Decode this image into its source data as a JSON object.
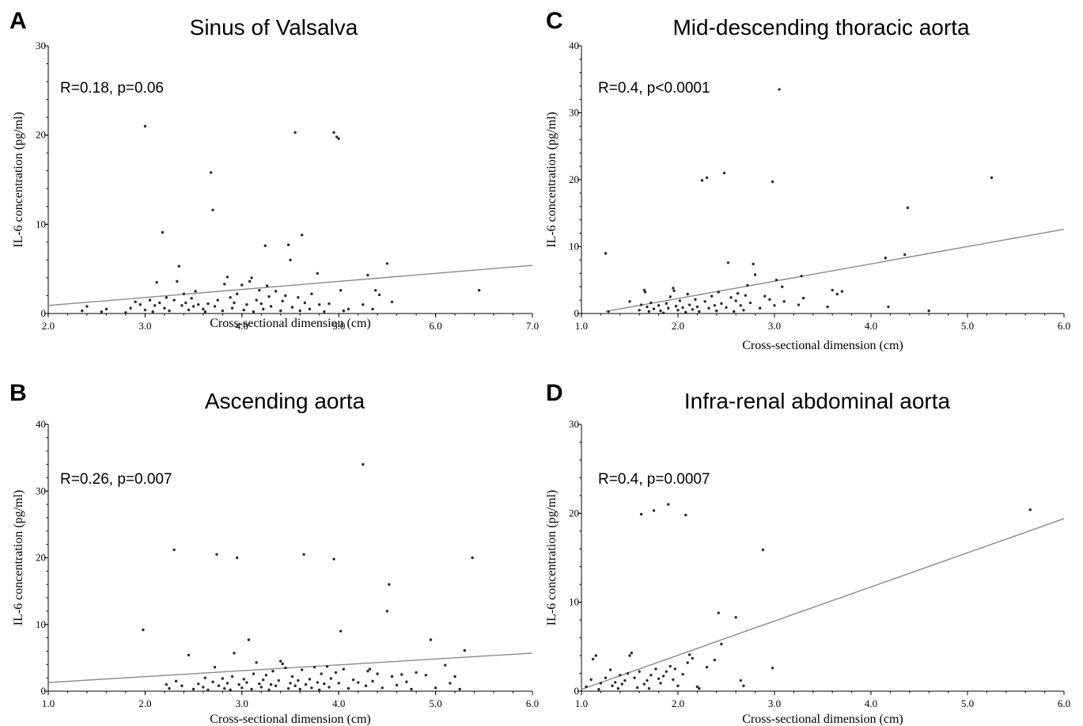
{
  "chart_data": [
    {
      "panel": "A",
      "type": "scatter",
      "title": "Sinus of Valsalva",
      "annotation": "R=0.18, p=0.06",
      "xlabel": "Cross-sectional dimension (cm)",
      "ylabel": "IL-6 concentration (pg/ml)",
      "xlim": [
        2.0,
        7.0
      ],
      "ylim": [
        0,
        30
      ],
      "xticks": [
        "2.0",
        "3.0",
        "4.0",
        "5.0",
        "6.0",
        "7.0"
      ],
      "yticks": [
        "0",
        "10",
        "20",
        "30"
      ],
      "trend": [
        [
          2.0,
          0.9
        ],
        [
          7.0,
          5.4
        ]
      ],
      "points": [
        [
          2.35,
          0.3
        ],
        [
          2.4,
          0.8
        ],
        [
          2.55,
          0.2
        ],
        [
          2.6,
          0.5
        ],
        [
          2.8,
          0.1
        ],
        [
          2.85,
          0.6
        ],
        [
          2.9,
          1.3
        ],
        [
          2.95,
          1.0
        ],
        [
          3.0,
          21.0
        ],
        [
          3.0,
          0.4
        ],
        [
          3.05,
          1.5
        ],
        [
          3.08,
          0.2
        ],
        [
          3.1,
          0.9
        ],
        [
          3.12,
          3.5
        ],
        [
          3.15,
          1.2
        ],
        [
          3.18,
          9.1
        ],
        [
          3.2,
          0.6
        ],
        [
          3.22,
          1.8
        ],
        [
          3.25,
          0.3
        ],
        [
          3.3,
          1.5
        ],
        [
          3.33,
          3.6
        ],
        [
          3.35,
          5.3
        ],
        [
          3.38,
          0.9
        ],
        [
          3.4,
          2.2
        ],
        [
          3.42,
          1.2
        ],
        [
          3.45,
          0.4
        ],
        [
          3.48,
          1.7
        ],
        [
          3.5,
          0.8
        ],
        [
          3.52,
          2.5
        ],
        [
          3.55,
          1.0
        ],
        [
          3.6,
          0.5
        ],
        [
          3.62,
          0.2
        ],
        [
          3.65,
          1.1
        ],
        [
          3.68,
          15.8
        ],
        [
          3.7,
          11.6
        ],
        [
          3.72,
          0.8
        ],
        [
          3.75,
          1.5
        ],
        [
          3.8,
          0.3
        ],
        [
          3.82,
          3.3
        ],
        [
          3.85,
          4.1
        ],
        [
          3.88,
          1.8
        ],
        [
          3.9,
          0.6
        ],
        [
          3.92,
          1.2
        ],
        [
          3.95,
          2.2
        ],
        [
          4.0,
          3.2
        ],
        [
          4.02,
          0.4
        ],
        [
          4.05,
          1.0
        ],
        [
          4.08,
          3.6
        ],
        [
          4.1,
          4.0
        ],
        [
          4.12,
          0.2
        ],
        [
          4.15,
          1.5
        ],
        [
          4.18,
          2.6
        ],
        [
          4.2,
          1.1
        ],
        [
          4.22,
          0.5
        ],
        [
          4.24,
          7.6
        ],
        [
          4.26,
          3.1
        ],
        [
          4.28,
          1.9
        ],
        [
          4.3,
          0.8
        ],
        [
          4.35,
          2.5
        ],
        [
          4.4,
          0.3
        ],
        [
          4.42,
          1.4
        ],
        [
          4.45,
          2.0
        ],
        [
          4.48,
          7.7
        ],
        [
          4.5,
          6.0
        ],
        [
          4.52,
          0.7
        ],
        [
          4.55,
          20.3
        ],
        [
          4.58,
          1.8
        ],
        [
          4.6,
          0.3
        ],
        [
          4.62,
          8.8
        ],
        [
          4.65,
          1.2
        ],
        [
          4.7,
          0.5
        ],
        [
          4.72,
          2.2
        ],
        [
          4.78,
          4.5
        ],
        [
          4.8,
          1.0
        ],
        [
          4.85,
          0.2
        ],
        [
          4.9,
          1.1
        ],
        [
          4.95,
          20.3
        ],
        [
          4.98,
          19.8
        ],
        [
          5.0,
          19.6
        ],
        [
          5.02,
          2.6
        ],
        [
          5.05,
          0.3
        ],
        [
          5.1,
          0.5
        ],
        [
          5.25,
          1.0
        ],
        [
          5.3,
          4.3
        ],
        [
          5.38,
          2.6
        ],
        [
          5.42,
          2.1
        ],
        [
          5.5,
          5.6
        ],
        [
          5.55,
          1.3
        ],
        [
          5.35,
          0.5
        ],
        [
          6.45,
          2.6
        ]
      ]
    },
    {
      "panel": "C",
      "type": "scatter",
      "title": "Mid-descending thoracic aorta",
      "annotation": "R=0.4, p<0.0001",
      "xlabel": "Cross-sectional dimension (cm)",
      "ylabel": "IL-6 concentration (pg/ml)",
      "xlim": [
        1.0,
        6.0
      ],
      "ylim": [
        0,
        40
      ],
      "xticks": [
        "1.0",
        "2.0",
        "3.0",
        "4.0",
        "5.0",
        "6.0"
      ],
      "yticks": [
        "0",
        "10",
        "20",
        "30",
        "40"
      ],
      "trend": [
        [
          1.25,
          0.3
        ],
        [
          6.0,
          12.6
        ]
      ],
      "points": [
        [
          1.25,
          9.0
        ],
        [
          1.28,
          0.3
        ],
        [
          1.5,
          1.8
        ],
        [
          1.6,
          0.5
        ],
        [
          1.62,
          1.3
        ],
        [
          1.65,
          3.5
        ],
        [
          1.66,
          3.2
        ],
        [
          1.68,
          1.0
        ],
        [
          1.7,
          0.3
        ],
        [
          1.72,
          1.6
        ],
        [
          1.75,
          0.7
        ],
        [
          1.8,
          1.2
        ],
        [
          1.82,
          0.4
        ],
        [
          1.85,
          0.1
        ],
        [
          1.88,
          1.5
        ],
        [
          1.9,
          0.8
        ],
        [
          1.92,
          2.5
        ],
        [
          1.95,
          3.8
        ],
        [
          1.96,
          3.4
        ],
        [
          1.98,
          1.1
        ],
        [
          2.0,
          0.5
        ],
        [
          2.02,
          1.9
        ],
        [
          2.05,
          0.9
        ],
        [
          2.08,
          0.2
        ],
        [
          2.1,
          2.9
        ],
        [
          2.12,
          1.3
        ],
        [
          2.15,
          0.6
        ],
        [
          2.18,
          2.1
        ],
        [
          2.2,
          1.0
        ],
        [
          2.22,
          0.3
        ],
        [
          2.25,
          19.9
        ],
        [
          2.28,
          1.8
        ],
        [
          2.3,
          20.3
        ],
        [
          2.32,
          0.8
        ],
        [
          2.35,
          2.6
        ],
        [
          2.38,
          1.2
        ],
        [
          2.4,
          0.4
        ],
        [
          2.42,
          3.2
        ],
        [
          2.45,
          1.5
        ],
        [
          2.48,
          21.0
        ],
        [
          2.5,
          0.9
        ],
        [
          2.52,
          7.6
        ],
        [
          2.55,
          2.4
        ],
        [
          2.58,
          0.3
        ],
        [
          2.6,
          1.9
        ],
        [
          2.62,
          3.0
        ],
        [
          2.65,
          1.2
        ],
        [
          2.68,
          0.5
        ],
        [
          2.7,
          2.7
        ],
        [
          2.72,
          4.2
        ],
        [
          2.75,
          1.6
        ],
        [
          2.78,
          7.4
        ],
        [
          2.8,
          5.8
        ],
        [
          2.85,
          0.8
        ],
        [
          2.9,
          2.6
        ],
        [
          2.95,
          2.1
        ],
        [
          2.98,
          19.7
        ],
        [
          3.0,
          1.2
        ],
        [
          3.02,
          5.0
        ],
        [
          3.05,
          33.5
        ],
        [
          3.08,
          4.0
        ],
        [
          3.1,
          1.8
        ],
        [
          3.25,
          1.3
        ],
        [
          3.28,
          5.6
        ],
        [
          3.3,
          2.3
        ],
        [
          3.55,
          1.0
        ],
        [
          3.6,
          3.5
        ],
        [
          3.65,
          2.9
        ],
        [
          3.7,
          3.3
        ],
        [
          4.15,
          8.3
        ],
        [
          4.18,
          1.0
        ],
        [
          4.35,
          8.8
        ],
        [
          4.38,
          15.8
        ],
        [
          4.6,
          0.4
        ],
        [
          5.25,
          20.3
        ]
      ]
    },
    {
      "panel": "B",
      "type": "scatter",
      "title": "Ascending aorta",
      "annotation": "R=0.26, p=0.007",
      "xlabel": "Cross-sectional dimension (cm)",
      "ylabel": "IL-6 concentration (pg/ml)",
      "xlim": [
        1.0,
        6.0
      ],
      "ylim": [
        0,
        40
      ],
      "xticks": [
        "1.0",
        "2.0",
        "3.0",
        "4.0",
        "5.0",
        "6.0"
      ],
      "yticks": [
        "0",
        "10",
        "20",
        "30",
        "40"
      ],
      "trend": [
        [
          1.0,
          1.3
        ],
        [
          6.0,
          5.7
        ]
      ],
      "points": [
        [
          1.98,
          9.2
        ],
        [
          2.22,
          1.0
        ],
        [
          2.25,
          0.4
        ],
        [
          2.3,
          21.2
        ],
        [
          2.32,
          1.5
        ],
        [
          2.38,
          0.8
        ],
        [
          2.45,
          5.4
        ],
        [
          2.5,
          0.3
        ],
        [
          2.55,
          1.1
        ],
        [
          2.6,
          0.6
        ],
        [
          2.62,
          2.0
        ],
        [
          2.65,
          0.2
        ],
        [
          2.7,
          1.4
        ],
        [
          2.72,
          3.6
        ],
        [
          2.74,
          20.5
        ],
        [
          2.76,
          0.8
        ],
        [
          2.8,
          1.9
        ],
        [
          2.82,
          0.4
        ],
        [
          2.85,
          1.2
        ],
        [
          2.88,
          0.2
        ],
        [
          2.9,
          2.2
        ],
        [
          2.92,
          5.7
        ],
        [
          2.95,
          20.0
        ],
        [
          2.97,
          1.0
        ],
        [
          3.0,
          0.5
        ],
        [
          3.02,
          1.8
        ],
        [
          3.05,
          1.3
        ],
        [
          3.07,
          7.7
        ],
        [
          3.1,
          0.3
        ],
        [
          3.12,
          2.6
        ],
        [
          3.15,
          4.3
        ],
        [
          3.18,
          1.1
        ],
        [
          3.2,
          0.6
        ],
        [
          3.22,
          1.7
        ],
        [
          3.25,
          2.4
        ],
        [
          3.28,
          0.2
        ],
        [
          3.3,
          1.0
        ],
        [
          3.32,
          3.0
        ],
        [
          3.35,
          0.8
        ],
        [
          3.38,
          1.6
        ],
        [
          3.4,
          4.5
        ],
        [
          3.42,
          4.1
        ],
        [
          3.45,
          3.5
        ],
        [
          3.48,
          0.4
        ],
        [
          3.5,
          1.2
        ],
        [
          3.52,
          2.2
        ],
        [
          3.55,
          0.8
        ],
        [
          3.58,
          1.6
        ],
        [
          3.6,
          0.3
        ],
        [
          3.62,
          3.2
        ],
        [
          3.64,
          20.5
        ],
        [
          3.66,
          1.0
        ],
        [
          3.7,
          1.8
        ],
        [
          3.72,
          0.5
        ],
        [
          3.75,
          3.6
        ],
        [
          3.78,
          1.3
        ],
        [
          3.8,
          0.2
        ],
        [
          3.82,
          2.6
        ],
        [
          3.85,
          1.1
        ],
        [
          3.88,
          3.7
        ],
        [
          3.9,
          0.6
        ],
        [
          3.92,
          1.9
        ],
        [
          3.95,
          19.8
        ],
        [
          3.97,
          2.8
        ],
        [
          4.0,
          1.2
        ],
        [
          4.02,
          9.0
        ],
        [
          4.05,
          3.3
        ],
        [
          4.1,
          0.4
        ],
        [
          4.15,
          1.7
        ],
        [
          4.2,
          1.3
        ],
        [
          4.25,
          34.0
        ],
        [
          4.28,
          0.8
        ],
        [
          4.3,
          3.0
        ],
        [
          4.32,
          3.3
        ],
        [
          4.35,
          1.5
        ],
        [
          4.4,
          2.6
        ],
        [
          4.45,
          0.5
        ],
        [
          4.5,
          12.0
        ],
        [
          4.52,
          16.0
        ],
        [
          4.55,
          2.2
        ],
        [
          4.6,
          0.9
        ],
        [
          4.65,
          2.5
        ],
        [
          4.7,
          1.4
        ],
        [
          4.75,
          0.3
        ],
        [
          4.8,
          2.8
        ],
        [
          4.9,
          2.4
        ],
        [
          4.95,
          7.7
        ],
        [
          5.0,
          0.5
        ],
        [
          5.1,
          3.9
        ],
        [
          5.15,
          1.2
        ],
        [
          5.2,
          2.2
        ],
        [
          5.25,
          0.3
        ],
        [
          5.3,
          6.1
        ],
        [
          5.38,
          20.0
        ]
      ]
    },
    {
      "panel": "D",
      "type": "scatter",
      "title": "Infra-renal abdominal aorta",
      "annotation": "R=0.4, p=0.0007",
      "xlabel": "Cross-sectional dimension (cm)",
      "ylabel": "IL-6 concentration (pg/ml)",
      "xlim": [
        1.0,
        6.0
      ],
      "ylim": [
        0,
        30
      ],
      "xticks": [
        "1.0",
        "2.0",
        "3.0",
        "4.0",
        "5.0",
        "6.0"
      ],
      "yticks": [
        "0",
        "10",
        "20",
        "30"
      ],
      "trend": [
        [
          1.0,
          0.2
        ],
        [
          6.0,
          19.4
        ]
      ],
      "points": [
        [
          1.05,
          0.5
        ],
        [
          1.1,
          1.3
        ],
        [
          1.12,
          3.6
        ],
        [
          1.15,
          4.0
        ],
        [
          1.18,
          0.2
        ],
        [
          1.2,
          0.9
        ],
        [
          1.25,
          1.5
        ],
        [
          1.3,
          2.4
        ],
        [
          1.32,
          0.6
        ],
        [
          1.35,
          1.0
        ],
        [
          1.38,
          0.3
        ],
        [
          1.4,
          1.8
        ],
        [
          1.42,
          0.8
        ],
        [
          1.45,
          1.2
        ],
        [
          1.48,
          2.0
        ],
        [
          1.5,
          4.0
        ],
        [
          1.52,
          4.3
        ],
        [
          1.55,
          1.5
        ],
        [
          1.58,
          0.4
        ],
        [
          1.6,
          2.2
        ],
        [
          1.62,
          19.9
        ],
        [
          1.65,
          0.8
        ],
        [
          1.68,
          1.2
        ],
        [
          1.7,
          0.3
        ],
        [
          1.72,
          1.8
        ],
        [
          1.75,
          20.3
        ],
        [
          1.77,
          2.5
        ],
        [
          1.8,
          1.4
        ],
        [
          1.82,
          0.9
        ],
        [
          1.85,
          1.7
        ],
        [
          1.88,
          2.2
        ],
        [
          1.9,
          21.0
        ],
        [
          1.92,
          2.8
        ],
        [
          1.95,
          1.3
        ],
        [
          1.97,
          2.5
        ],
        [
          2.0,
          0.6
        ],
        [
          2.05,
          1.9
        ],
        [
          2.08,
          19.8
        ],
        [
          2.1,
          3.2
        ],
        [
          2.12,
          4.1
        ],
        [
          2.15,
          3.7
        ],
        [
          2.2,
          0.5
        ],
        [
          2.22,
          0.3
        ],
        [
          2.3,
          2.7
        ],
        [
          2.38,
          3.5
        ],
        [
          2.42,
          8.8
        ],
        [
          2.45,
          5.3
        ],
        [
          2.6,
          8.3
        ],
        [
          2.65,
          1.2
        ],
        [
          2.68,
          0.6
        ],
        [
          2.88,
          15.9
        ],
        [
          2.98,
          2.6
        ],
        [
          5.65,
          20.4
        ]
      ]
    }
  ]
}
